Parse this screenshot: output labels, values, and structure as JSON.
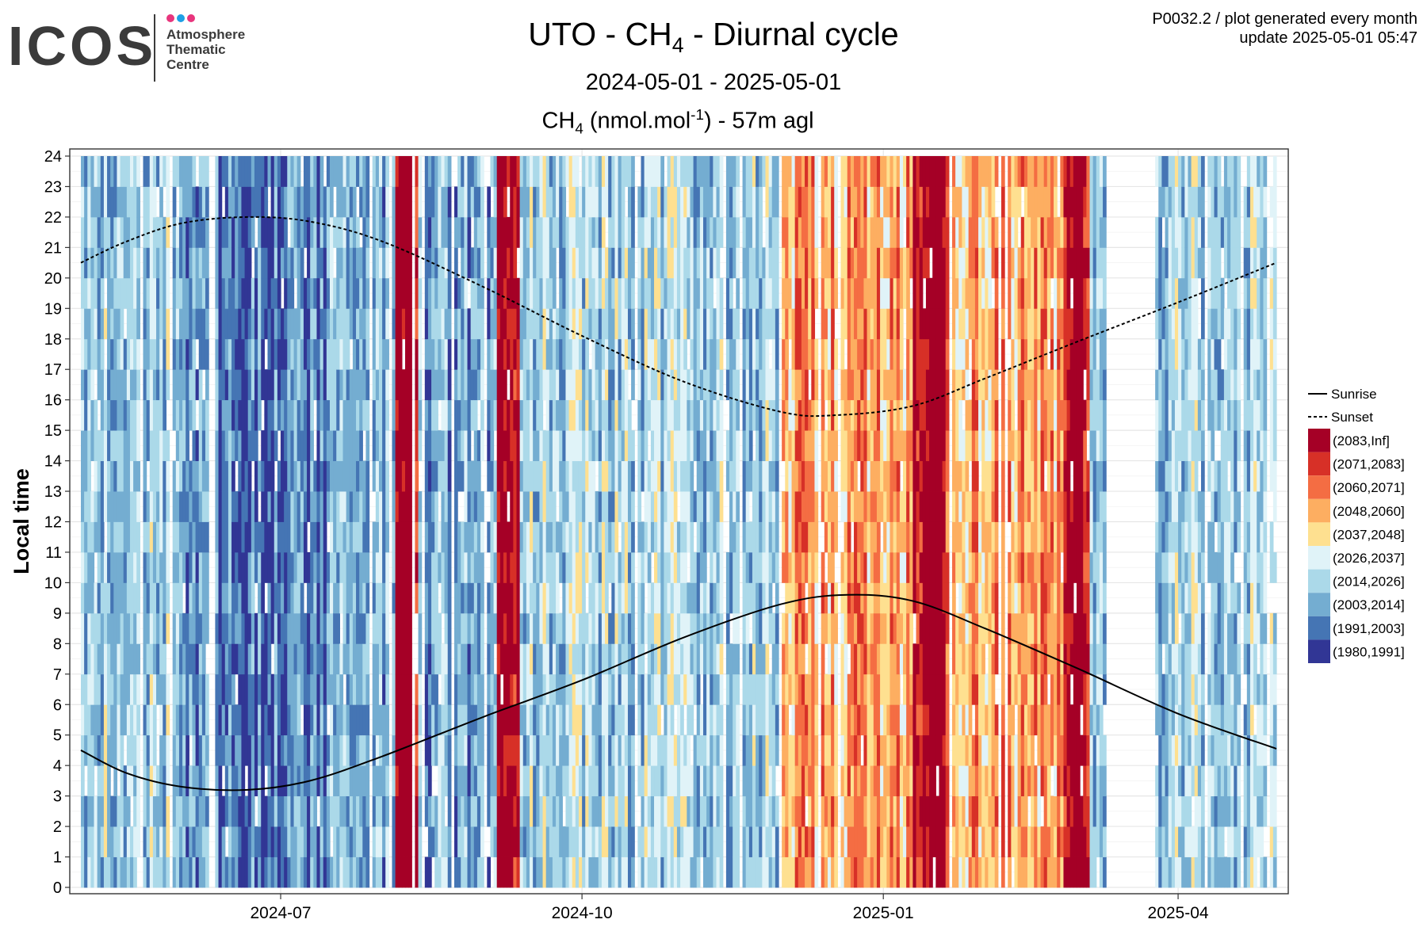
{
  "logo": {
    "text": "ICOS",
    "subtitle_lines": [
      "Atmosphere",
      "Thematic",
      "Centre"
    ],
    "dot_colors": [
      "#e8357d",
      "#1ea0e6",
      "#e8357d"
    ]
  },
  "header": {
    "title_prefix": "UTO - CH",
    "title_sub": "4",
    "title_suffix": " - Diurnal cycle",
    "date_range": "2024-05-01 - 2025-05-01",
    "measure_prefix": "CH",
    "measure_sub": "4",
    "measure_mid": " (nmol.mol",
    "measure_sup": "-1",
    "measure_suffix": ") - 57m agl"
  },
  "meta": {
    "line1": "P0032.2 / plot generated every month",
    "line2": "update  2025-05-01 05:47"
  },
  "chart_data": {
    "type": "heatmap",
    "title": "UTO - CH4 - Diurnal cycle",
    "subtitle": "2024-05-01 - 2025-05-01",
    "measure": "CH4 (nmol.mol-1) - 57m agl",
    "xlabel": "",
    "ylabel": "Local time",
    "x_start": "2024-05-01",
    "x_end": "2025-05-01",
    "x_ticks": [
      "2024-07",
      "2024-10",
      "2025-01",
      "2025-04"
    ],
    "y_ticks": [
      0,
      1,
      2,
      3,
      4,
      5,
      6,
      7,
      8,
      9,
      10,
      11,
      12,
      13,
      14,
      15,
      16,
      17,
      18,
      19,
      20,
      21,
      22,
      23,
      24
    ],
    "ylim": [
      0,
      24
    ],
    "grid": true,
    "legend_position": "right",
    "lines": [
      {
        "name": "Sunrise",
        "style": "solid",
        "color": "#000000",
        "points": [
          [
            "2024-05-01",
            4.5
          ],
          [
            "2024-05-15",
            3.75
          ],
          [
            "2024-06-01",
            3.3
          ],
          [
            "2024-06-21",
            3.2
          ],
          [
            "2024-07-10",
            3.5
          ],
          [
            "2024-08-01",
            4.3
          ],
          [
            "2024-09-01",
            5.6
          ],
          [
            "2024-10-01",
            6.8
          ],
          [
            "2024-11-01",
            8.2
          ],
          [
            "2024-12-01",
            9.3
          ],
          [
            "2024-12-21",
            9.6
          ],
          [
            "2025-01-10",
            9.4
          ],
          [
            "2025-02-01",
            8.5
          ],
          [
            "2025-03-01",
            7.2
          ],
          [
            "2025-04-01",
            5.7
          ],
          [
            "2025-05-01",
            4.55
          ]
        ]
      },
      {
        "name": "Sunset",
        "style": "dashed",
        "color": "#000000",
        "points": [
          [
            "2024-05-01",
            20.5
          ],
          [
            "2024-05-15",
            21.2
          ],
          [
            "2024-06-01",
            21.8
          ],
          [
            "2024-06-21",
            22.0
          ],
          [
            "2024-07-10",
            21.85
          ],
          [
            "2024-08-01",
            21.2
          ],
          [
            "2024-09-01",
            19.7
          ],
          [
            "2024-10-01",
            18.1
          ],
          [
            "2024-11-01",
            16.6
          ],
          [
            "2024-12-01",
            15.6
          ],
          [
            "2024-12-18",
            15.5
          ],
          [
            "2025-01-10",
            15.8
          ],
          [
            "2025-02-01",
            16.7
          ],
          [
            "2025-03-01",
            17.9
          ],
          [
            "2025-04-01",
            19.2
          ],
          [
            "2025-05-01",
            20.5
          ]
        ]
      }
    ],
    "bins": [
      {
        "label": "(2083,Inf]",
        "color": "#a50026"
      },
      {
        "label": "(2071,2083]",
        "color": "#d73027"
      },
      {
        "label": "(2060,2071]",
        "color": "#f46d43"
      },
      {
        "label": "(2048,2060]",
        "color": "#fdae61"
      },
      {
        "label": "(2037,2048]",
        "color": "#fee090"
      },
      {
        "label": "(2026,2037]",
        "color": "#e0f3f8"
      },
      {
        "label": "(2014,2026]",
        "color": "#abd9e9"
      },
      {
        "label": "(2003,2014]",
        "color": "#74add1"
      },
      {
        "label": "(1991,2003]",
        "color": "#4575b4"
      },
      {
        "label": "(1980,1991]",
        "color": "#313695"
      }
    ],
    "dominant_bin_by_period": [
      {
        "from": "2024-05-01",
        "to": "2024-06-01",
        "bin": "(2014,2026]"
      },
      {
        "from": "2024-06-01",
        "to": "2024-07-15",
        "bin": "(1991,2003]"
      },
      {
        "from": "2024-07-15",
        "to": "2024-08-05",
        "bin": "(2003,2014]"
      },
      {
        "from": "2024-08-05",
        "to": "2024-08-12",
        "bin": "(2083,Inf]"
      },
      {
        "from": "2024-08-12",
        "to": "2024-09-05",
        "bin": "(2003,2014]"
      },
      {
        "from": "2024-09-05",
        "to": "2024-09-12",
        "bin": "(2083,Inf]"
      },
      {
        "from": "2024-09-12",
        "to": "2024-12-01",
        "bin": "(2014,2026]"
      },
      {
        "from": "2024-12-01",
        "to": "2025-01-10",
        "bin": "(2048,2060]"
      },
      {
        "from": "2025-01-10",
        "to": "2025-01-20",
        "bin": "(2083,Inf]"
      },
      {
        "from": "2025-01-20",
        "to": "2025-02-25",
        "bin": "(2048,2060]"
      },
      {
        "from": "2025-02-25",
        "to": "2025-03-05",
        "bin": "(2083,Inf]"
      },
      {
        "from": "2025-03-05",
        "to": "2025-03-10",
        "bin": "(2014,2026]"
      },
      {
        "from": "2025-03-10",
        "to": "2025-03-25",
        "bin": null
      },
      {
        "from": "2025-03-25",
        "to": "2025-05-01",
        "bin": "(2014,2026]"
      }
    ]
  }
}
